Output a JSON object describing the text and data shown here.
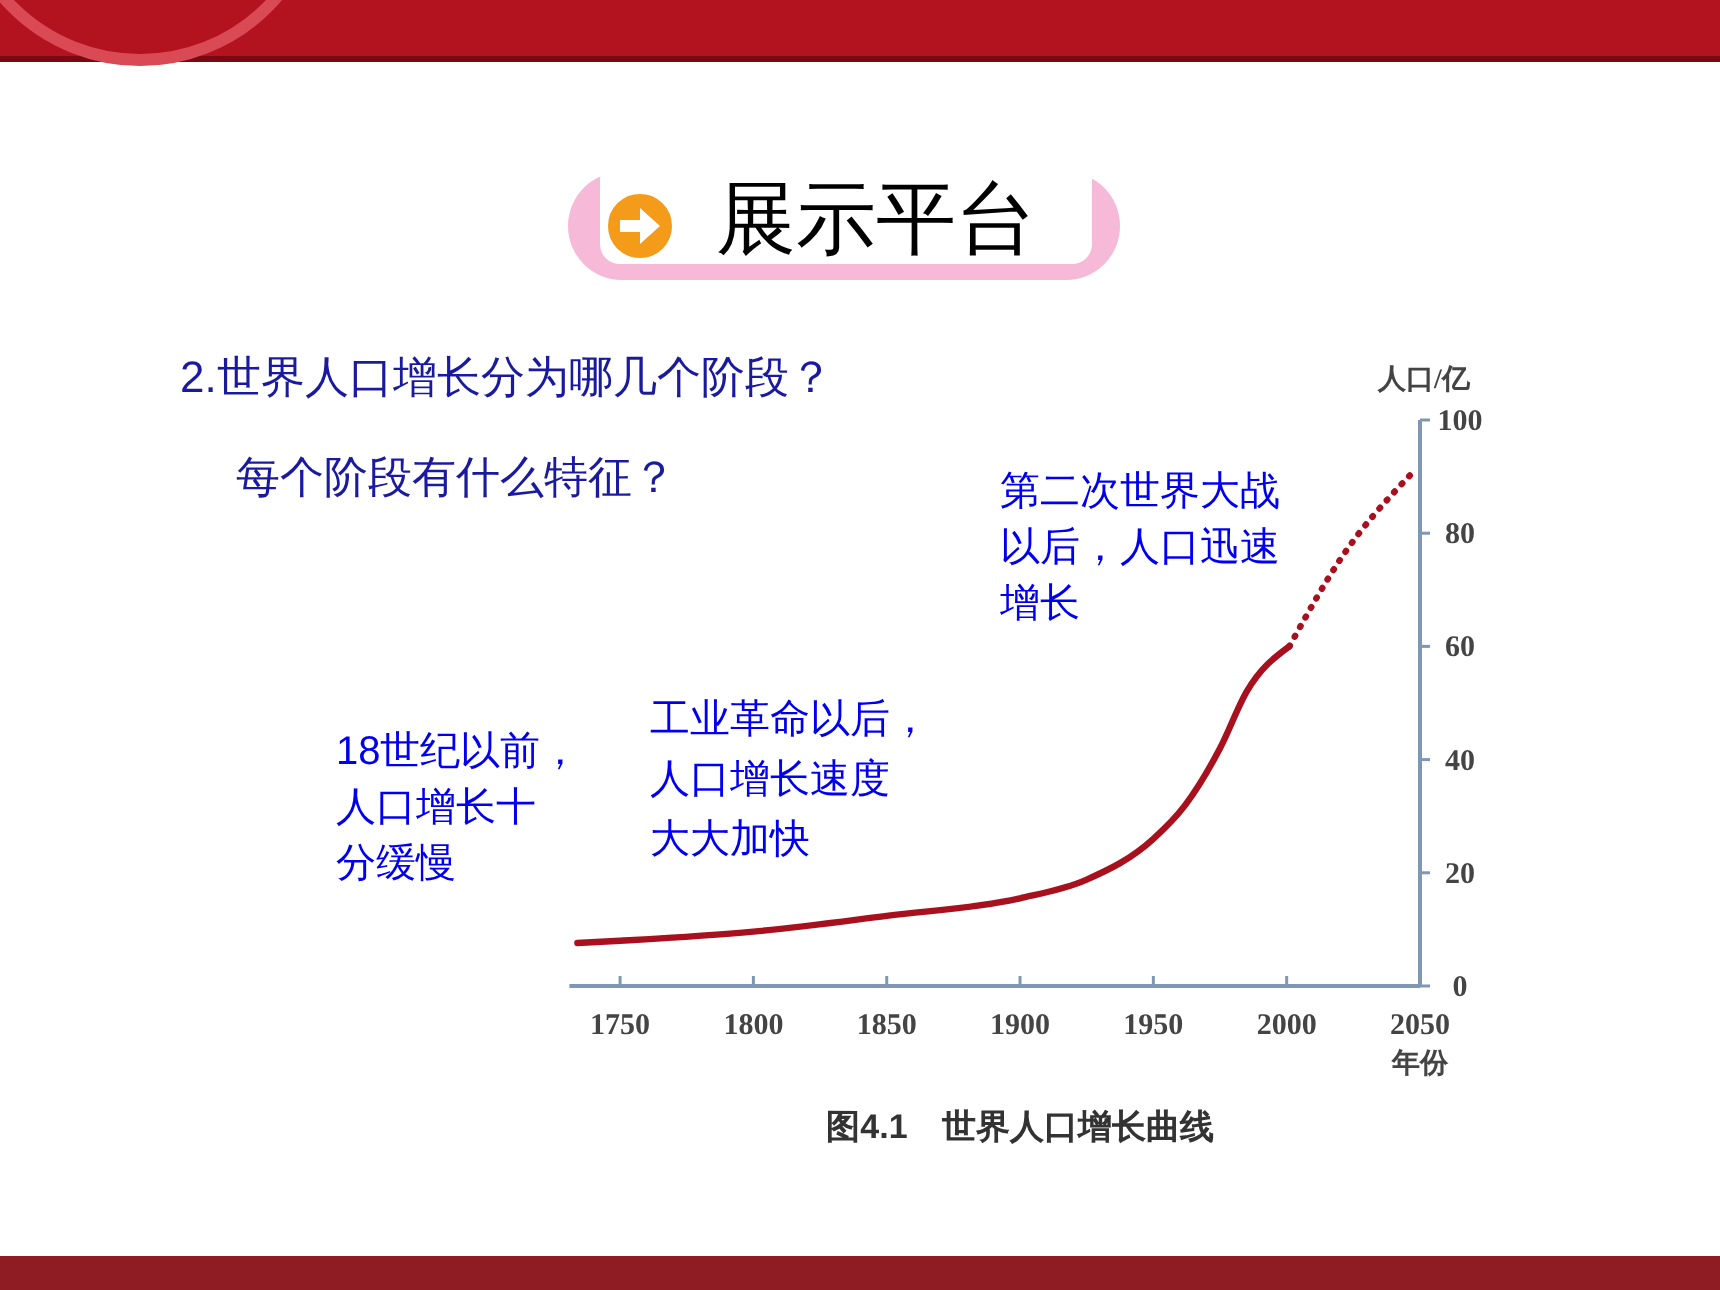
{
  "chart_data": {
    "type": "line",
    "title": "展示平台",
    "subtitle": "2.世界人口增长分为哪几个阶段？每个阶段有什么特征？",
    "xlabel": "年份",
    "ylabel": "人口/亿",
    "xlim": [
      1731,
      2050
    ],
    "xticks": [
      1750,
      1800,
      1850,
      1900,
      1950,
      2000,
      2050
    ],
    "ylim": [
      0,
      100
    ],
    "yticks": [
      0,
      20,
      40,
      60,
      80,
      100
    ],
    "grid": false,
    "series": [
      {
        "color": "#a8101e",
        "line_style": "solid",
        "x": [
          1734,
          1750,
          1800,
          1850,
          1900,
          1925,
          1950,
          1962,
          1975,
          1985,
          2001
        ],
        "values": [
          7.6,
          8,
          9.6,
          12.4,
          15.5,
          18.8,
          26,
          32,
          42,
          52,
          60
        ]
      },
      {
        "color": "#a8101e",
        "line_style": "dotted",
        "x": [
          2001,
          2020,
          2047
        ],
        "values": [
          60,
          75.3,
          90.6
        ]
      }
    ],
    "annotations": [
      "18世纪以前，人口增长十分缓慢",
      "工业革命以后，人口增长速度大大加快",
      "第二次世界大战以后，人口迅速增长",
      "图4.1　世界人口增长曲线"
    ]
  }
}
